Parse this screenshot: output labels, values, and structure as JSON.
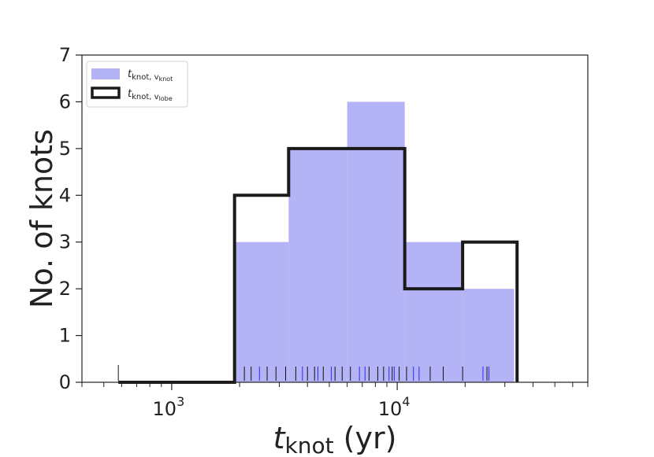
{
  "chart_data": {
    "type": "bar",
    "subtype": "histogram",
    "xscale": "log",
    "xlim": [
      400,
      70000
    ],
    "ylim": [
      0,
      7
    ],
    "xlabel": {
      "main": "t",
      "sub": "knot",
      "unit": " (yr)"
    },
    "ylabel": "No. of knots",
    "x_major_ticks": [
      {
        "value": 1000,
        "base": "10",
        "exp": "3"
      },
      {
        "value": 10000,
        "base": "10",
        "exp": "4"
      }
    ],
    "y_ticks": [
      0,
      1,
      2,
      3,
      4,
      5,
      6,
      7
    ],
    "legend": {
      "placement": "top-left",
      "entries": [
        {
          "main": "t",
          "sub": "knot, v",
          "subsub": "knot",
          "style": "filled",
          "color": "#b3b3f5"
        },
        {
          "main": "t",
          "sub": "knot, v",
          "subsub": "lobe",
          "style": "step-outline",
          "color": "#1a1a1a"
        }
      ]
    },
    "series": [
      {
        "key": "t_knot_v_knot",
        "style": "filled",
        "color": "#b3b3f5",
        "bins": [
          {
            "x0": 1900,
            "x1": 3300,
            "count": 3
          },
          {
            "x0": 3300,
            "x1": 6000,
            "count": 5
          },
          {
            "x0": 6000,
            "x1": 10800,
            "count": 6
          },
          {
            "x0": 10800,
            "x1": 19500,
            "count": 3
          },
          {
            "x0": 19500,
            "x1": 33000,
            "count": 2
          }
        ],
        "rug": [
          2450,
          3800,
          4450,
          5100,
          6800,
          7200,
          9200,
          9700,
          11800,
          12500,
          24000,
          25500
        ]
      },
      {
        "key": "t_knot_v_lobe",
        "style": "step-outline",
        "color": "#1a1a1a",
        "bins": [
          {
            "x0": 580,
            "x1": 1900,
            "count": 0
          },
          {
            "x0": 1900,
            "x1": 3300,
            "count": 4
          },
          {
            "x0": 3300,
            "x1": 10800,
            "count": 5
          },
          {
            "x0": 10800,
            "x1": 19500,
            "count": 2
          },
          {
            "x0": 19500,
            "x1": 34000,
            "count": 3
          }
        ],
        "rug": [
          580,
          2100,
          2250,
          2650,
          2900,
          3200,
          3550,
          4000,
          4300,
          4700,
          5300,
          5700,
          6200,
          7500,
          8200,
          8700,
          9500,
          10200,
          11000,
          14000,
          16000,
          19500,
          25000
        ]
      }
    ]
  }
}
